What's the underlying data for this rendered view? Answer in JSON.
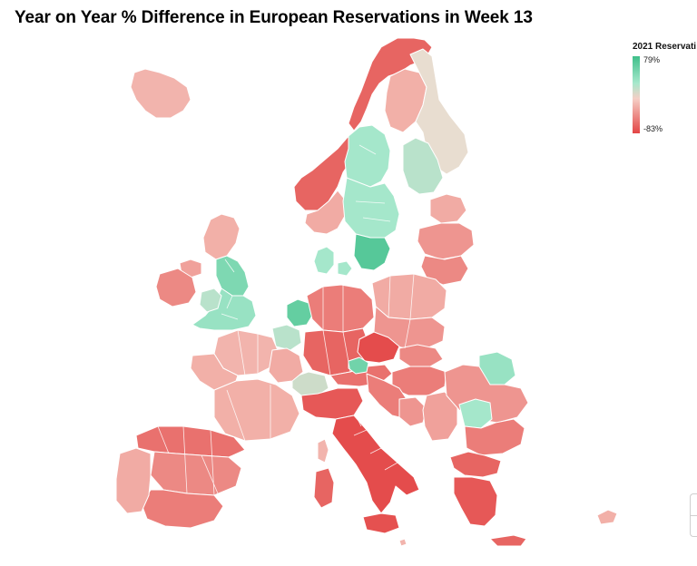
{
  "title": "Year on Year % Difference in European Reservations in Week 13",
  "legend": {
    "title": "2021 Reservati",
    "max_label": "79%",
    "min_label": "-83%",
    "max_value": 79,
    "min_value": -83
  },
  "colors": {
    "high_green": "#3fbf8a",
    "light_green": "#a6e8cc",
    "neutral": "#f5cfc6",
    "pale_red": "#f1aaa3",
    "red": "#e85a5a",
    "deep_red": "#e34545",
    "no_data": "#e8ddd0"
  },
  "regions": [
    {
      "name": "Iceland",
      "value": -30
    },
    {
      "name": "Norway North",
      "value": -70
    },
    {
      "name": "Norway West",
      "value": -70
    },
    {
      "name": "Norway South",
      "value": -40
    },
    {
      "name": "Sweden North",
      "value": 40
    },
    {
      "name": "Sweden Central",
      "value": 40
    },
    {
      "name": "Sweden South",
      "value": 70
    },
    {
      "name": "Finland North",
      "value": -35
    },
    {
      "name": "Finland Central",
      "value": null
    },
    {
      "name": "Finland South",
      "value": 30
    },
    {
      "name": "Estonia",
      "value": -40
    },
    {
      "name": "Latvia",
      "value": -50
    },
    {
      "name": "Lithuania",
      "value": -55
    },
    {
      "name": "Denmark",
      "value": 40
    },
    {
      "name": "Scotland",
      "value": -35
    },
    {
      "name": "England North",
      "value": 55
    },
    {
      "name": "England South",
      "value": 45
    },
    {
      "name": "Wales",
      "value": 30
    },
    {
      "name": "Ireland",
      "value": -55
    },
    {
      "name": "Northern Ireland",
      "value": -45
    },
    {
      "name": "Netherlands",
      "value": 65
    },
    {
      "name": "Belgium",
      "value": 30
    },
    {
      "name": "Germany North",
      "value": -60
    },
    {
      "name": "Germany South",
      "value": -70
    },
    {
      "name": "Poland North",
      "value": -40
    },
    {
      "name": "Poland South",
      "value": -50
    },
    {
      "name": "Czechia",
      "value": -80
    },
    {
      "name": "Austria",
      "value": -65
    },
    {
      "name": "Slovenia",
      "value": 60
    },
    {
      "name": "Hungary",
      "value": -60
    },
    {
      "name": "Slovakia",
      "value": -55
    },
    {
      "name": "Switzerland",
      "value": 20
    },
    {
      "name": "France North",
      "value": -30
    },
    {
      "name": "France South",
      "value": -35
    },
    {
      "name": "France East",
      "value": -40
    },
    {
      "name": "Spain North",
      "value": -65
    },
    {
      "name": "Spain Central",
      "value": -55
    },
    {
      "name": "Spain South",
      "value": -60
    },
    {
      "name": "Portugal",
      "value": -40
    },
    {
      "name": "Italy North",
      "value": -75
    },
    {
      "name": "Italy South",
      "value": -80
    },
    {
      "name": "Sardinia",
      "value": -70
    },
    {
      "name": "Corsica",
      "value": -30
    },
    {
      "name": "Sicily",
      "value": -78
    },
    {
      "name": "Croatia",
      "value": -60
    },
    {
      "name": "Bosnia",
      "value": -50
    },
    {
      "name": "Serbia",
      "value": -45
    },
    {
      "name": "Romania North",
      "value": 45
    },
    {
      "name": "Romania South",
      "value": -50
    },
    {
      "name": "Bulgaria North",
      "value": 40
    },
    {
      "name": "Bulgaria South",
      "value": -60
    },
    {
      "name": "Greece North",
      "value": -70
    },
    {
      "name": "Greece South",
      "value": -75
    },
    {
      "name": "Crete",
      "value": -70
    },
    {
      "name": "Cyprus",
      "value": -35
    },
    {
      "name": "Malta",
      "value": -30
    }
  ]
}
